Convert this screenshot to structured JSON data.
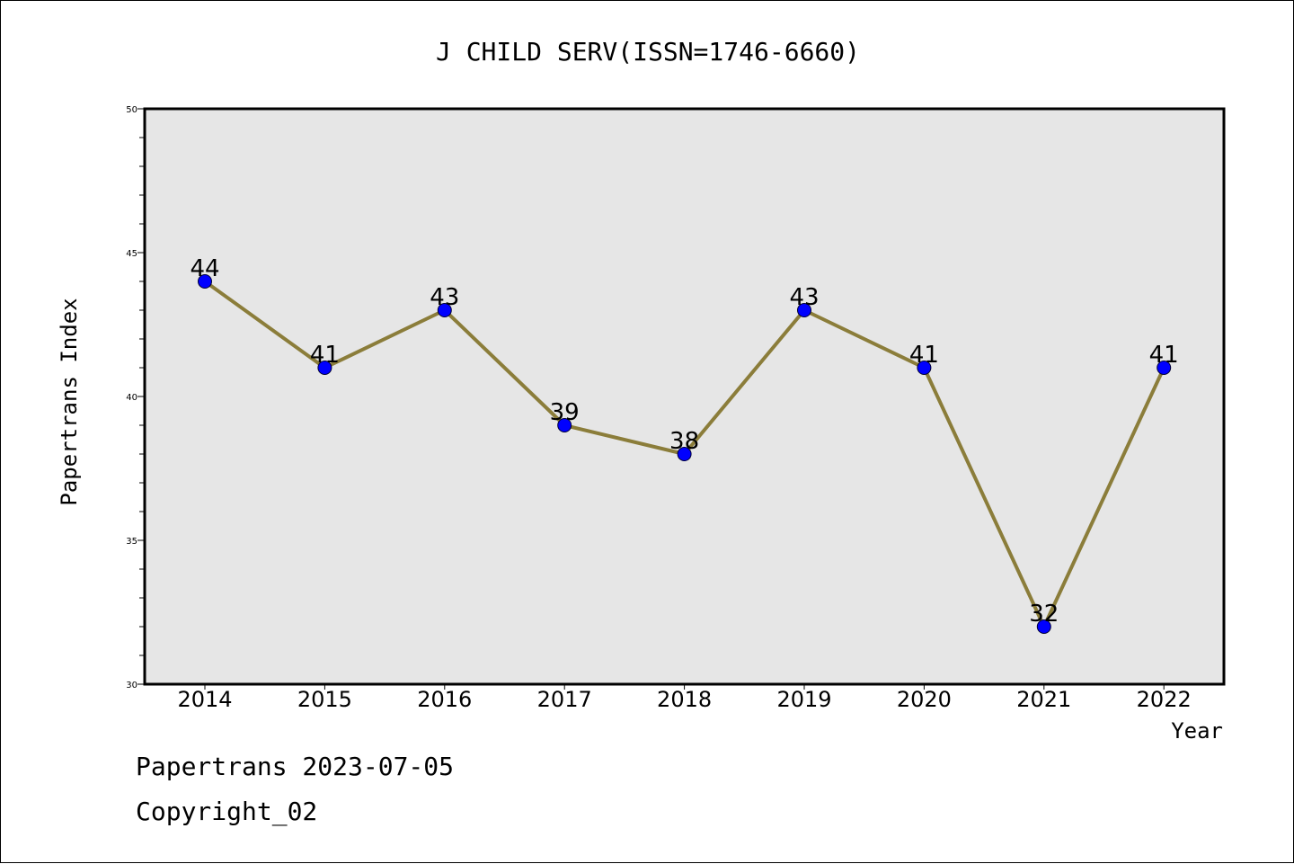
{
  "chart_data": {
    "type": "line",
    "title": "J CHILD SERV(ISSN=1746-6660)",
    "xlabel": "Year",
    "ylabel": "Papertrans Index",
    "categories": [
      "2014",
      "2015",
      "2016",
      "2017",
      "2018",
      "2019",
      "2020",
      "2021",
      "2022"
    ],
    "series": [
      {
        "values": [
          44,
          41,
          43,
          39,
          38,
          43,
          41,
          32,
          41
        ]
      }
    ],
    "ylim": [
      30,
      50
    ],
    "yticks": [
      30,
      35,
      40,
      45,
      50
    ],
    "grid": false,
    "colors": {
      "line": "#8B7D3A",
      "marker": "#0000FF",
      "plot_background": "#E6E6E6"
    }
  },
  "footer": {
    "line1": "Papertrans 2023-07-05",
    "line2": "Copyright_02"
  }
}
